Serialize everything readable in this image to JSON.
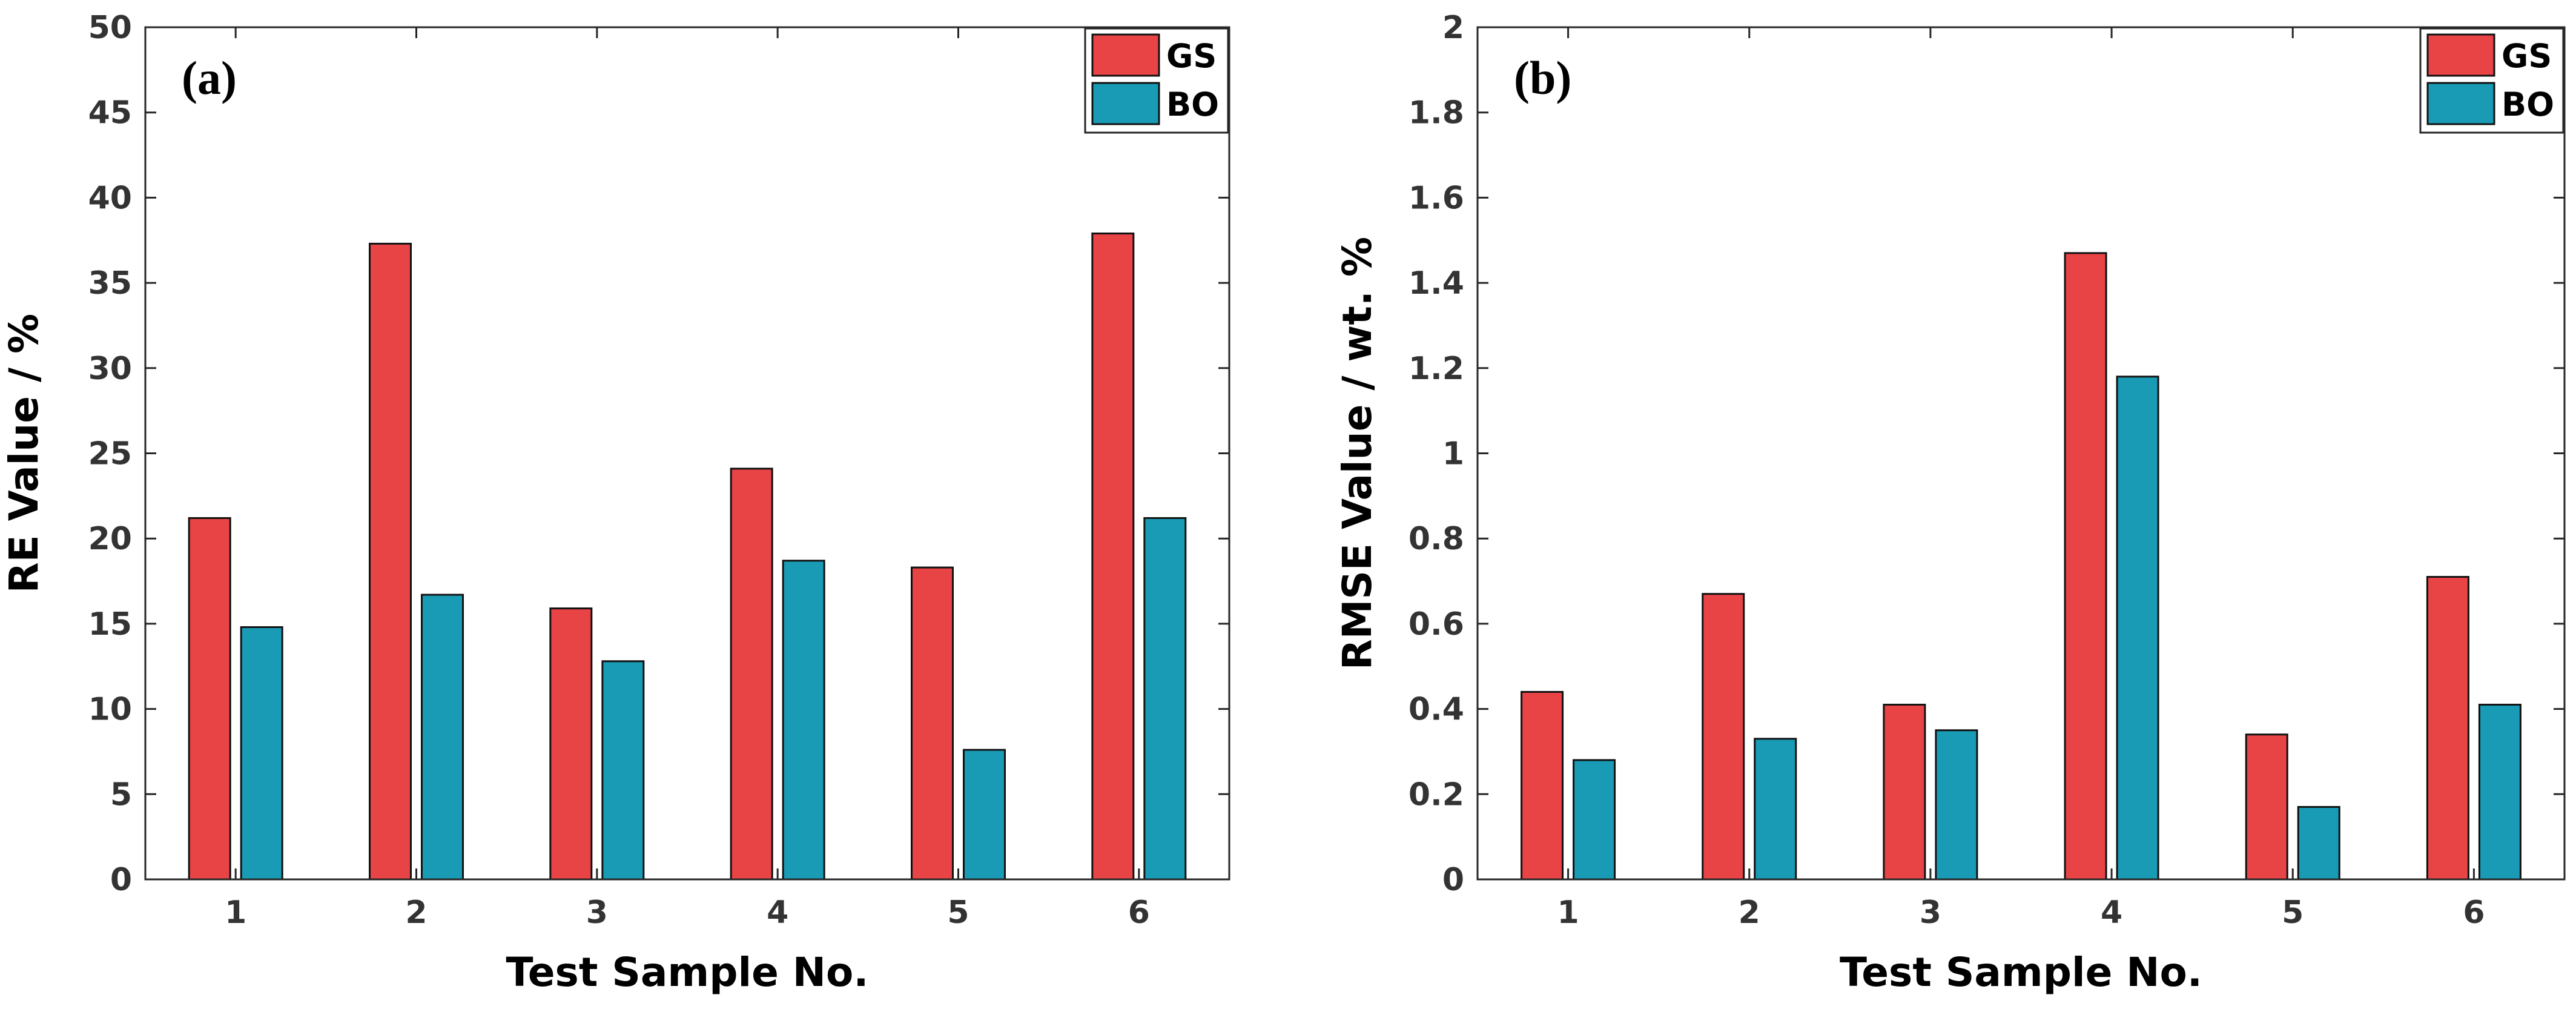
{
  "chart_data": [
    {
      "type": "bar",
      "panel_label": "(a)",
      "categories": [
        "1",
        "2",
        "3",
        "4",
        "5",
        "6"
      ],
      "series": [
        {
          "name": "GS",
          "values": [
            21.2,
            37.3,
            15.9,
            24.1,
            18.3,
            37.9
          ]
        },
        {
          "name": "BO",
          "values": [
            14.8,
            16.7,
            12.8,
            18.7,
            7.6,
            21.2
          ]
        }
      ],
      "xlabel": "Test Sample No.",
      "ylabel": "RE Value / %",
      "ylim": [
        0,
        50
      ],
      "yticks": [
        0,
        5,
        10,
        15,
        20,
        25,
        30,
        35,
        40,
        45,
        50
      ],
      "ytick_labels": [
        "0",
        "5",
        "10",
        "15",
        "20",
        "25",
        "30",
        "35",
        "40",
        "45",
        "50"
      ],
      "legend_position": "top-right",
      "grid": false
    },
    {
      "type": "bar",
      "panel_label": "(b)",
      "categories": [
        "1",
        "2",
        "3",
        "4",
        "5",
        "6"
      ],
      "series": [
        {
          "name": "GS",
          "values": [
            0.44,
            0.67,
            0.41,
            1.47,
            0.34,
            0.71
          ]
        },
        {
          "name": "BO",
          "values": [
            0.28,
            0.33,
            0.35,
            1.18,
            0.17,
            0.41
          ]
        }
      ],
      "xlabel": "Test Sample No.",
      "ylabel": "RMSE Value / wt. %",
      "ylim": [
        0,
        2
      ],
      "yticks": [
        0,
        0.2,
        0.4,
        0.6,
        0.8,
        1,
        1.2,
        1.4,
        1.6,
        1.8,
        2
      ],
      "ytick_labels": [
        "0",
        "0.2",
        "0.4",
        "0.6",
        "0.8",
        "1",
        "1.2",
        "1.4",
        "1.6",
        "1.8",
        "2"
      ],
      "legend_position": "top-right",
      "grid": false
    }
  ],
  "colors": {
    "GS": "#e84446",
    "BO": "#1a9bb5",
    "axis": "#262626",
    "tick_text": "#333333"
  }
}
